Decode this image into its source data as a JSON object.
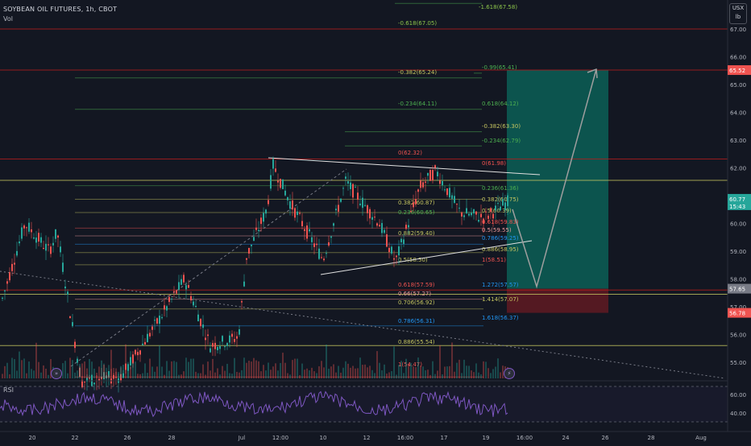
{
  "header": {
    "title": "SOYBEAN OIL FUTURES, 1h, CBOT",
    "volume_label": "Vol",
    "rsi_label": "RSI",
    "currency": "USX",
    "unit": "lb"
  },
  "price_axis": {
    "ticks": [
      "67.00",
      "66.00",
      "65.00",
      "64.00",
      "63.00",
      "62.00",
      "61.00",
      "60.00",
      "59.00",
      "58.00",
      "57.00",
      "56.00",
      "55.00"
    ],
    "current_price": "60.77",
    "countdown": "15:43",
    "target_price": "65.52",
    "entry_price": "57.65",
    "stop_price": "56.78"
  },
  "rsi_axis": {
    "ticks": [
      "60.00",
      "40.00"
    ]
  },
  "time_axis": {
    "ticks": [
      "20",
      "22",
      "26",
      "28",
      "Jul",
      "12:00",
      "10",
      "12",
      "16:00",
      "17",
      "19",
      "16:00",
      "24",
      "26",
      "28",
      "Aug"
    ]
  },
  "fib_labels": {
    "set_a": [
      "-1.618(67.58)",
      "-0.618(67.05)",
      "-0.99(65.41)",
      "-0.382(65.24)",
      "-0.234(64.11)",
      "0.618(64.12)",
      "-0.382(63.30)",
      "-0.234(62.79)"
    ],
    "set_b": [
      "0(62.32)",
      "0(61.98)",
      "0.236(61.36)",
      "0.382(60.87)",
      "0.382(60.75)",
      "0.236(60.65)",
      "0.5(60.39)",
      "0.618(59.83)",
      "0.5(59.55)",
      "0.786(59.25)",
      "0.882(59.40)",
      "0.886(58.95)",
      "1(58.51)",
      "0.5(58.50)"
    ],
    "set_c": [
      "0.618(57.59)",
      "1.272(57.57)",
      "0.66(57.27)",
      "1.414(57.07)",
      "0.706(56.92)",
      "0.786(56.31)",
      "1.618(56.37)",
      "0.886(55.54)",
      "1(54.47)"
    ]
  },
  "colors": {
    "background": "#131722",
    "bull": "#26a69a",
    "bear": "#ef5350",
    "rsi": "#7e57c2",
    "target_zone": "#0c5f56",
    "stop_zone": "#5c1a22",
    "current_price_bg": "#26a69a",
    "target_price_bg": "#ef5350",
    "entry_price_bg": "#787b86"
  },
  "icons": [
    "go-to-realtime-icon",
    "replay-icon",
    "forward-icon"
  ]
}
